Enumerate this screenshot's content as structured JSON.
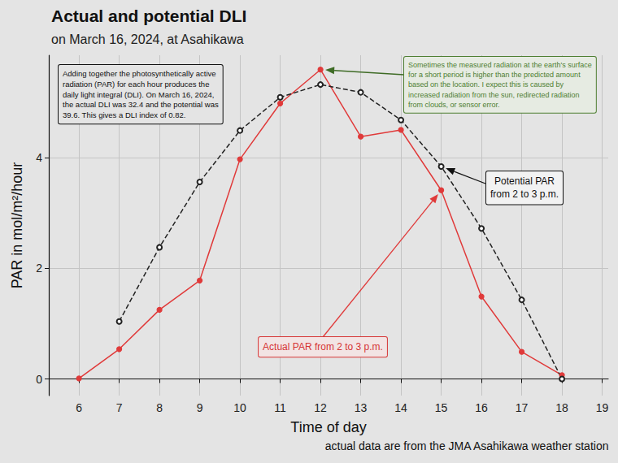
{
  "chart_data": {
    "type": "line",
    "title": "Actual and potential DLI",
    "subtitle": "on March 16, 2024, at Asahikawa",
    "x_label": "Time of day",
    "y_label": "PAR in mol/m²/hour",
    "caption": "actual data are from the JMA Asahikawa weather station",
    "xlim": [
      5.25,
      19.15
    ],
    "xticks": [
      6,
      7,
      8,
      9,
      10,
      11,
      12,
      13,
      14,
      15,
      16,
      17,
      18,
      19
    ],
    "ylim": [
      -0.3,
      5.85
    ],
    "yticks": [
      0,
      2,
      4
    ],
    "grid": true,
    "series": [
      {
        "color": "#e03a3a",
        "line_style": "solid",
        "marker": "filled_circle",
        "x": [
          6,
          7,
          8,
          9,
          10,
          11,
          12,
          13,
          14,
          15,
          16,
          17,
          18
        ],
        "values": [
          0.01,
          0.54,
          1.25,
          1.78,
          3.97,
          4.98,
          5.59,
          4.38,
          4.5,
          3.41,
          1.49,
          0.49,
          0.07
        ]
      },
      {
        "color": "#222222",
        "line_style": "dashed",
        "marker": "open_circle",
        "x": [
          7,
          8,
          9,
          10,
          11,
          12,
          13,
          14,
          15,
          16,
          17,
          18
        ],
        "values": [
          1.04,
          2.38,
          3.56,
          4.49,
          5.09,
          5.32,
          5.18,
          4.68,
          3.84,
          2.72,
          1.43,
          0.0
        ]
      }
    ],
    "annotations": [
      {
        "text": "Adding together the photosynthetically active\nradiation (PAR) for each hour produces the\ndaily light integral (DLI). On March 16, 2024,\nthe actual DLI was 32.4 and the potential was\n39.6. This gives a DLI index of 0.82."
      },
      {
        "text": "Sometimes the measured radiation at the earth's surface\nfor a short period is higher than the predicted amount\nbased on the location. I expect this is caused by\nincreased radiation from the sun, redirected radiation\nfrom clouds, or sensor error."
      },
      {
        "text": "Potential PAR\nfrom 2 to 3 p.m."
      },
      {
        "text": "Actual PAR from 2 to 3 p.m."
      }
    ]
  }
}
